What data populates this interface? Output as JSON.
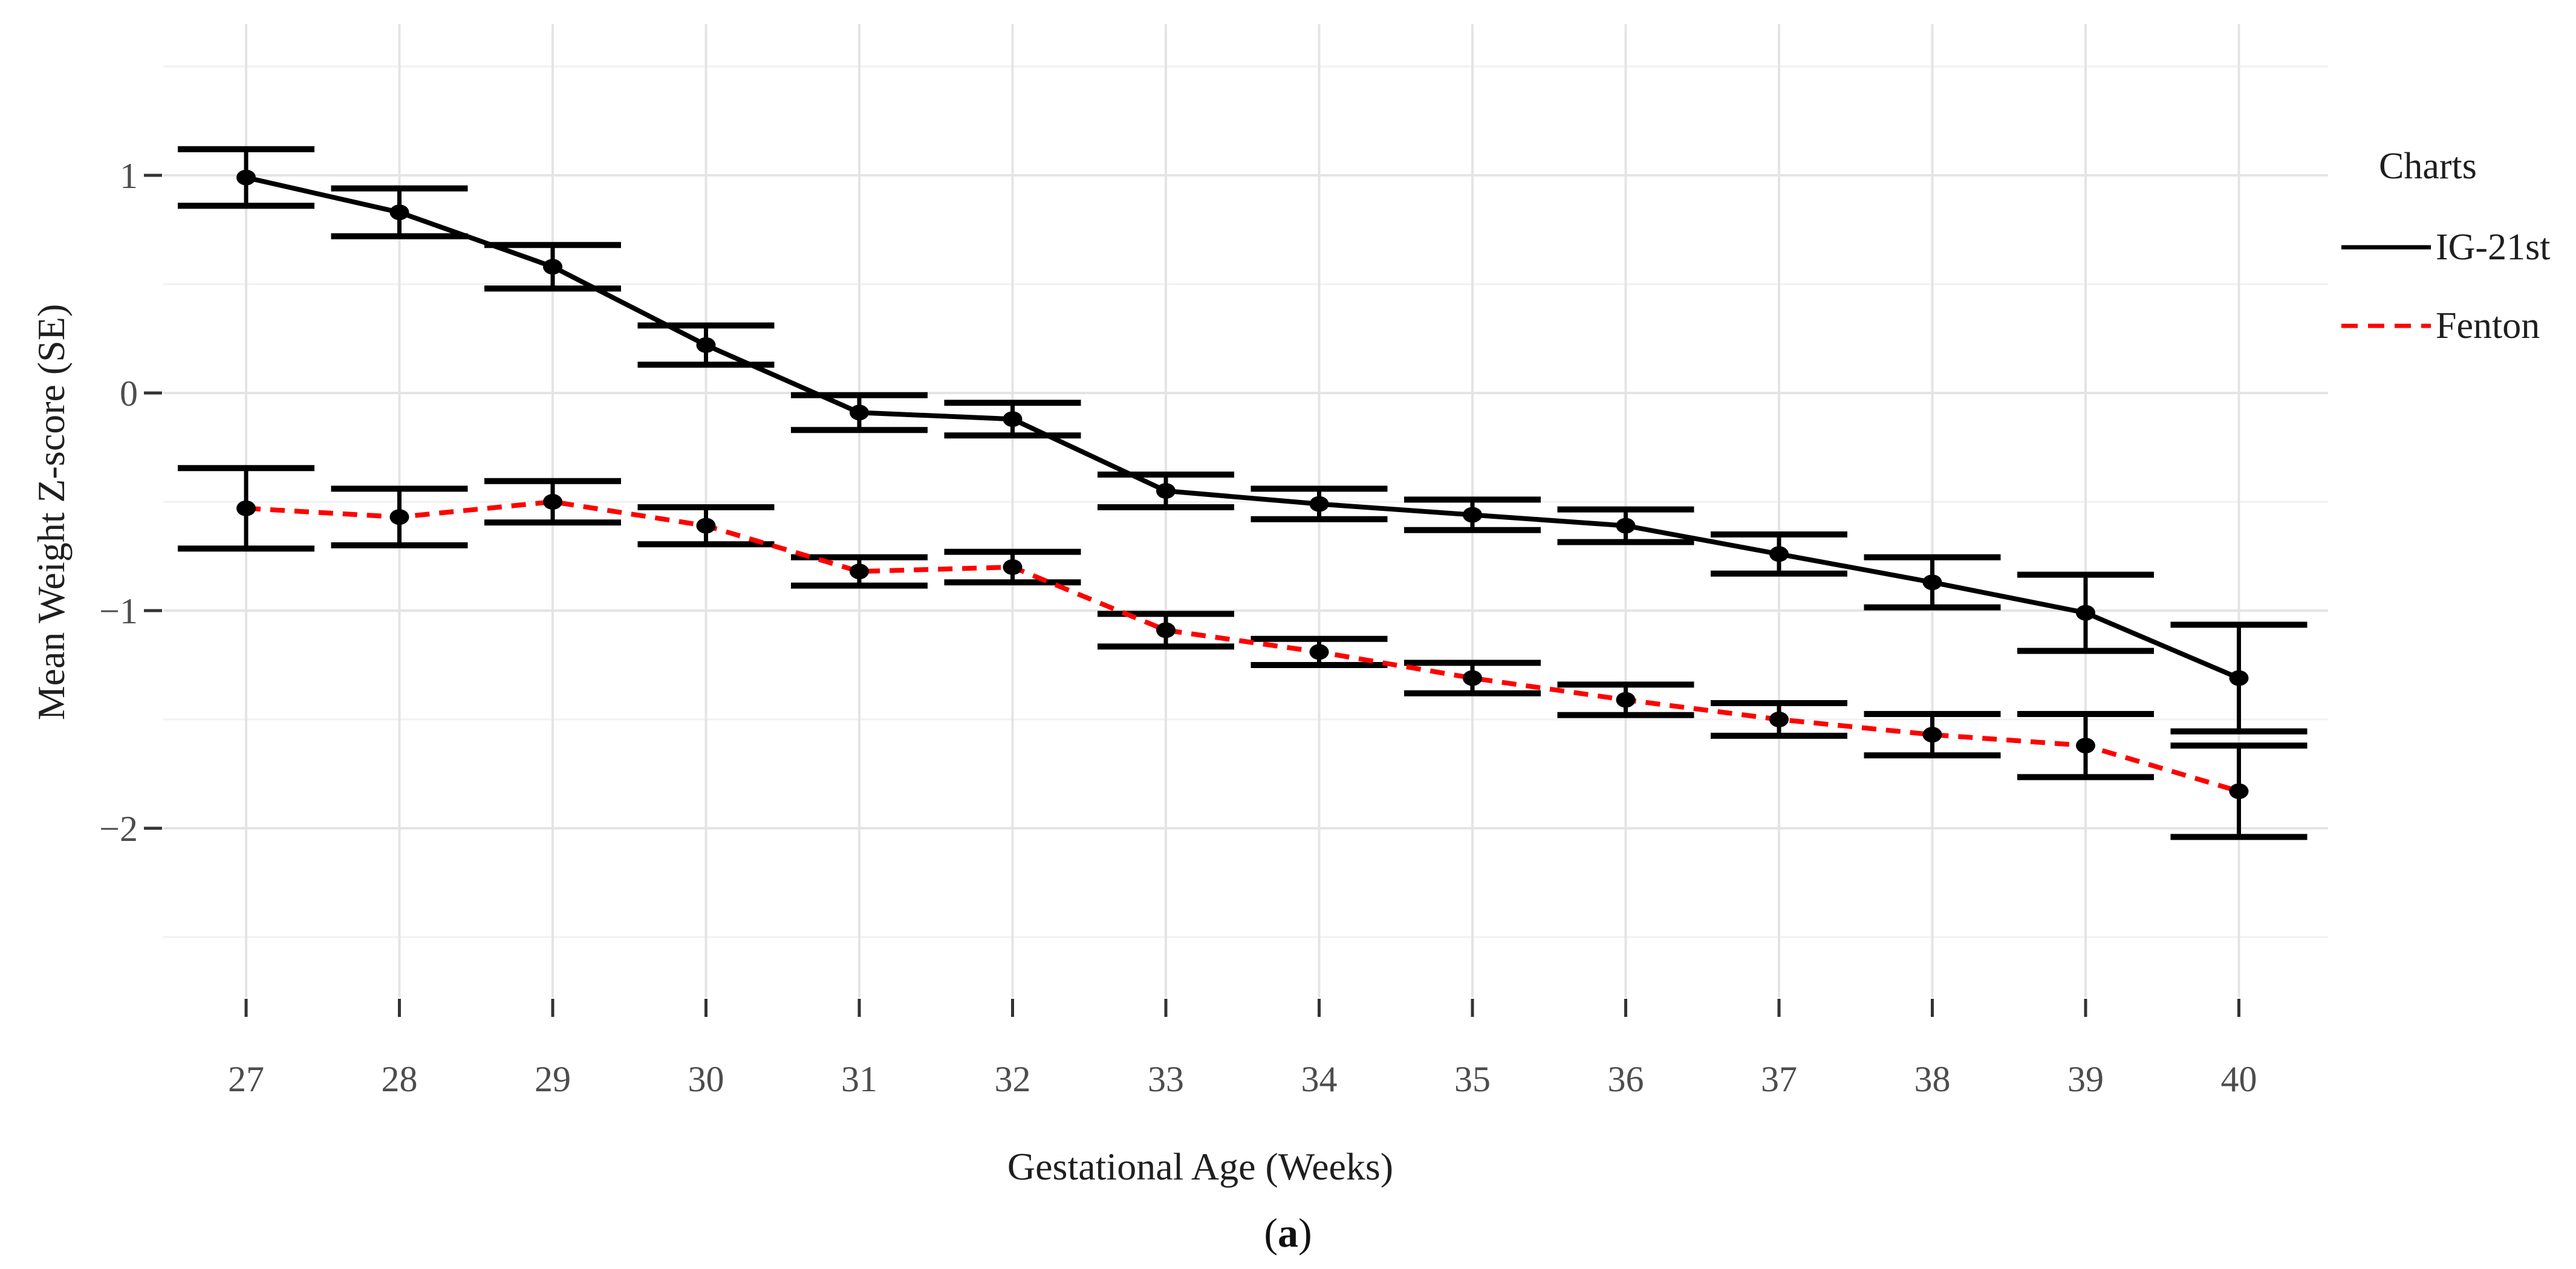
{
  "figure": {
    "caption_open": "(",
    "caption_letter": "a",
    "caption_close": ")"
  },
  "chart_data": {
    "type": "line",
    "title": "",
    "xlabel": "Gestational Age (Weeks)",
    "ylabel": "Mean Weight Z-score (SE)",
    "categories": [
      27,
      28,
      29,
      30,
      31,
      32,
      33,
      34,
      35,
      36,
      37,
      38,
      39,
      40
    ],
    "x_tick_labels": [
      "27",
      "28",
      "29",
      "30",
      "31",
      "32",
      "33",
      "34",
      "35",
      "36",
      "37",
      "38",
      "39",
      "40"
    ],
    "y_major_ticks": [
      1,
      0,
      -1,
      -2
    ],
    "y_tick_labels": [
      "1",
      "0",
      "−1",
      "−2"
    ],
    "y_minor_ticks": [
      1.5,
      0.5,
      -0.5,
      -1.5,
      -2.5
    ],
    "ylim": [
      -2.78,
      1.69
    ],
    "grid": "major+minor horizontal, major vertical per week",
    "error_bars": true,
    "legend": {
      "title": "Charts",
      "position": "right",
      "entries": [
        "IG-21st",
        "Fenton"
      ]
    },
    "series": [
      {
        "name": "IG-21st",
        "color": "#000000",
        "line_style": "solid",
        "marker": "filled-circle",
        "values": [
          0.99,
          0.83,
          0.58,
          0.22,
          -0.09,
          -0.12,
          -0.45,
          -0.51,
          -0.56,
          -0.61,
          -0.74,
          -0.87,
          -1.01,
          -1.31
        ],
        "se": [
          0.13,
          0.11,
          0.1,
          0.09,
          0.08,
          0.075,
          0.075,
          0.07,
          0.07,
          0.075,
          0.09,
          0.115,
          0.175,
          0.245
        ]
      },
      {
        "name": "Fenton",
        "color": "#ff0000",
        "line_style": "dashed",
        "marker": "filled-circle",
        "values": [
          -0.53,
          -0.57,
          -0.5,
          -0.61,
          -0.82,
          -0.8,
          -1.09,
          -1.19,
          -1.31,
          -1.41,
          -1.5,
          -1.57,
          -1.62,
          -1.83
        ],
        "se": [
          0.185,
          0.13,
          0.095,
          0.085,
          0.065,
          0.07,
          0.075,
          0.06,
          0.07,
          0.07,
          0.075,
          0.095,
          0.145,
          0.21
        ]
      }
    ]
  },
  "colors": {
    "background": "#ffffff",
    "grid_major": "#e4e4e4",
    "grid_minor": "#f1f1f1",
    "tick_mark": "#333333",
    "tick_label": "#4d4d4d",
    "axis_title": "#1f1f1f",
    "marker_fill": "#000000",
    "error_bar": "#000000"
  }
}
